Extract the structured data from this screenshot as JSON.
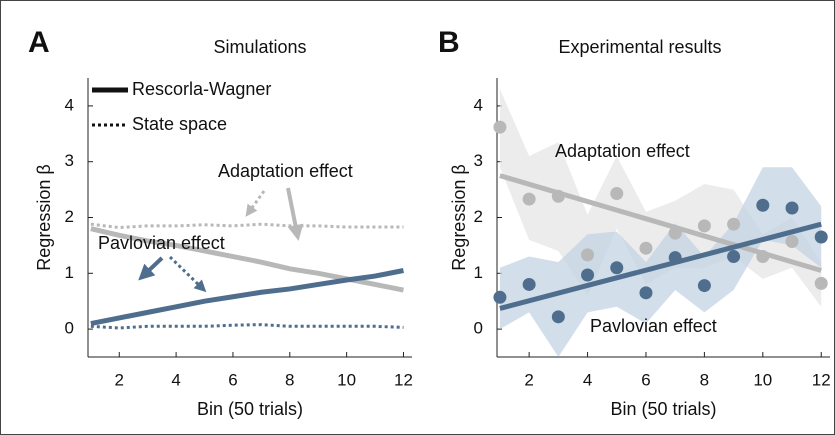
{
  "chart_data": [
    {
      "type": "line",
      "panel": "A",
      "title": "Simulations",
      "xlabel": "Bin (50 trials)",
      "ylabel": "Regression β",
      "x": [
        1,
        2,
        3,
        4,
        5,
        6,
        7,
        8,
        9,
        10,
        11,
        12
      ],
      "xlim": [
        0.9,
        12.3
      ],
      "xticks": [
        2,
        4,
        6,
        8,
        10,
        12
      ],
      "ylim": [
        -0.5,
        4.5
      ],
      "yticks": [
        0,
        1,
        2,
        3,
        4
      ],
      "legend": [
        {
          "label": "Rescorla-Wagner",
          "style": "solid"
        },
        {
          "label": "State space",
          "style": "dotted"
        }
      ],
      "series": [
        {
          "color": "#b8b8b8",
          "style": "solid",
          "values": [
            1.8,
            1.68,
            1.58,
            1.5,
            1.4,
            1.3,
            1.2,
            1.08,
            1.0,
            0.9,
            0.8,
            0.7
          ]
        },
        {
          "color": "#b8b8b8",
          "style": "dotted",
          "values": [
            1.88,
            1.82,
            1.85,
            1.85,
            1.87,
            1.85,
            1.88,
            1.85,
            1.85,
            1.83,
            1.83,
            1.83
          ]
        },
        {
          "color": "#4f6e8e",
          "style": "solid",
          "values": [
            0.1,
            0.2,
            0.3,
            0.4,
            0.5,
            0.58,
            0.66,
            0.72,
            0.8,
            0.88,
            0.95,
            1.05
          ]
        },
        {
          "color": "#4f6e8e",
          "style": "dotted",
          "values": [
            0.05,
            0.02,
            0.05,
            0.05,
            0.05,
            0.07,
            0.08,
            0.05,
            0.05,
            0.05,
            0.05,
            0.03
          ]
        }
      ],
      "annotations": [
        {
          "text": "Adaptation effect",
          "color": "#a8a8a8"
        },
        {
          "text": "Pavlovian effect",
          "color": "#4f6e8e"
        }
      ]
    },
    {
      "type": "scatter",
      "panel": "B",
      "title": "Experimental results",
      "xlabel": "Bin (50 trials)",
      "ylabel": "Regression β",
      "x": [
        1,
        2,
        3,
        4,
        5,
        6,
        7,
        8,
        9,
        10,
        11,
        12
      ],
      "xlim": [
        0.9,
        12.3
      ],
      "xticks": [
        2,
        4,
        6,
        8,
        10,
        12
      ],
      "ylim": [
        -0.5,
        4.5
      ],
      "yticks": [
        0,
        1,
        2,
        3,
        4
      ],
      "series": [
        {
          "color": "#b8b8b8",
          "band_color": "#e6e6e6",
          "values": [
            3.62,
            2.33,
            2.38,
            1.33,
            2.43,
            1.45,
            1.72,
            1.85,
            1.88,
            1.3,
            1.57,
            0.82
          ],
          "upper": [
            4.3,
            3.1,
            3.35,
            2.05,
            3.1,
            2.1,
            2.3,
            2.6,
            2.5,
            1.7,
            2.0,
            1.2
          ],
          "lower": [
            2.9,
            1.6,
            1.4,
            0.6,
            1.8,
            0.8,
            1.1,
            1.1,
            1.3,
            0.9,
            1.1,
            0.4
          ],
          "fit": {
            "x": [
              1,
              12
            ],
            "values": [
              2.75,
              1.05
            ]
          }
        },
        {
          "color": "#4f6e8e",
          "band_color": "#c3d3e3",
          "values": [
            0.57,
            0.8,
            0.22,
            0.97,
            1.1,
            0.65,
            1.28,
            0.78,
            1.3,
            2.22,
            2.17,
            1.65
          ],
          "upper": [
            1.1,
            1.3,
            1.2,
            1.7,
            1.75,
            1.2,
            1.9,
            1.3,
            1.9,
            2.9,
            2.9,
            2.2
          ],
          "lower": [
            0.0,
            0.3,
            -0.5,
            0.3,
            0.4,
            0.1,
            0.7,
            0.3,
            0.7,
            1.6,
            1.5,
            1.1
          ],
          "fit": {
            "x": [
              1,
              12
            ],
            "values": [
              0.37,
              1.88
            ]
          }
        }
      ],
      "annotations": [
        {
          "text": "Adaptation effect",
          "color": "#a8a8a8"
        },
        {
          "text": "Pavlovian effect",
          "color": "#4f6e8e"
        }
      ]
    }
  ]
}
